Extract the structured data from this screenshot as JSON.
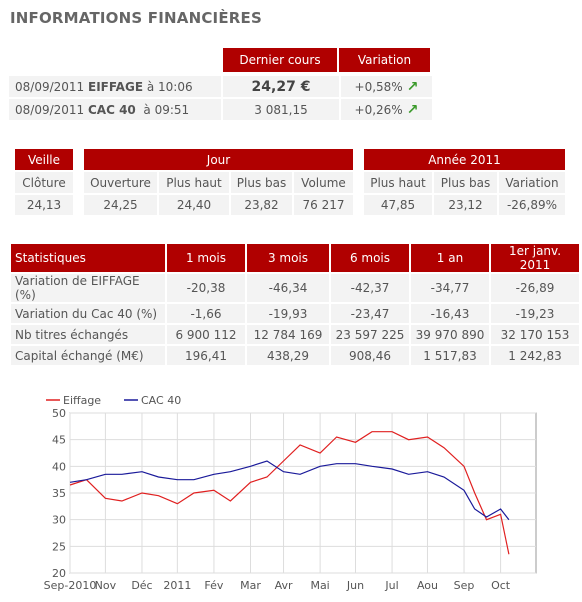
{
  "page_title": "INFORMATIONS FINANCIÈRES",
  "quote": {
    "col_last": "Dernier cours",
    "col_var": "Variation",
    "rows": [
      {
        "date": "08/09/2011",
        "name": "EIFFAGE",
        "time": "à 10:06",
        "price": "24,27 €",
        "variation": "+0,58%"
      },
      {
        "date": "08/09/2011",
        "name": "CAC 40",
        "time": "à 09:51",
        "price": "3 081,15",
        "variation": "+0,26%"
      }
    ]
  },
  "day": {
    "veille": {
      "header": "Veille",
      "cols": [
        "Clôture"
      ],
      "vals": [
        "24,13"
      ]
    },
    "jour": {
      "header": "Jour",
      "cols": [
        "Ouverture",
        "Plus haut",
        "Plus bas",
        "Volume"
      ],
      "vals": [
        "24,25",
        "24,40",
        "23,82",
        "76 217"
      ]
    },
    "annee": {
      "header": "Année 2011",
      "cols": [
        "Plus haut",
        "Plus bas",
        "Variation"
      ],
      "vals": [
        "47,85",
        "23,12",
        "-26,89%"
      ]
    }
  },
  "stats": {
    "headers": [
      "Statistiques",
      "1 mois",
      "3 mois",
      "6 mois",
      "1 an",
      "1er janv. 2011"
    ],
    "rows": [
      [
        "Variation de EIFFAGE (%)",
        "-20,38",
        "-46,34",
        "-42,37",
        "-34,77",
        "-26,89"
      ],
      [
        "Variation du Cac 40 (%)",
        "-1,66",
        "-19,93",
        "-23,47",
        "-16,43",
        "-19,23"
      ],
      [
        "Nb titres échangés",
        "6 900 112",
        "12 784 169",
        "23 597 225",
        "39 970 890",
        "32 170 153"
      ],
      [
        "Capital échangé (M€)",
        "196,41",
        "438,29",
        "908,46",
        "1 517,83",
        "1 242,83"
      ]
    ]
  },
  "colors": {
    "accent": "#b00000",
    "eiffage": "#e02020",
    "cac": "#1a1a9a",
    "up_arrow": "#3a9a2a"
  },
  "chart_data": {
    "type": "line",
    "legend": [
      "Eiffage",
      "CAC 40"
    ],
    "x_ticks": [
      "Sep-2010",
      "Nov",
      "Déc",
      "2011",
      "Fév",
      "Mar",
      "Avr",
      "Mai",
      "Jun",
      "Jul",
      "Aou",
      "Sep",
      "Oct"
    ],
    "ylim": [
      20,
      50
    ],
    "y_ticks": [
      20,
      25,
      30,
      35,
      40,
      45,
      50
    ],
    "grid": true,
    "legend_position": "top-left",
    "series": [
      {
        "name": "Eiffage",
        "x": [
          "2010-09-01",
          "2010-09-15",
          "2010-10-01",
          "2010-10-15",
          "2010-11-01",
          "2010-11-15",
          "2010-12-01",
          "2010-12-15",
          "2011-01-01",
          "2011-01-15",
          "2011-02-01",
          "2011-02-15",
          "2011-03-01",
          "2011-03-15",
          "2011-04-01",
          "2011-04-15",
          "2011-05-01",
          "2011-05-15",
          "2011-06-01",
          "2011-06-15",
          "2011-07-01",
          "2011-07-15",
          "2011-08-01",
          "2011-08-10",
          "2011-08-20",
          "2011-09-01",
          "2011-09-08"
        ],
        "values": [
          36.5,
          37.5,
          34.0,
          33.5,
          35.0,
          34.5,
          33.0,
          35.0,
          35.5,
          33.5,
          37.0,
          38.0,
          41.0,
          44.0,
          42.5,
          45.5,
          44.5,
          46.5,
          46.5,
          45.0,
          45.5,
          43.5,
          40.0,
          35.0,
          30.0,
          31.0,
          23.5
        ]
      },
      {
        "name": "CAC 40",
        "x": [
          "2010-09-01",
          "2010-09-15",
          "2010-10-01",
          "2010-10-15",
          "2010-11-01",
          "2010-11-15",
          "2010-12-01",
          "2010-12-15",
          "2011-01-01",
          "2011-01-15",
          "2011-02-01",
          "2011-02-15",
          "2011-03-01",
          "2011-03-15",
          "2011-04-01",
          "2011-04-15",
          "2011-05-01",
          "2011-05-15",
          "2011-06-01",
          "2011-06-15",
          "2011-07-01",
          "2011-07-15",
          "2011-08-01",
          "2011-08-10",
          "2011-08-20",
          "2011-09-01",
          "2011-09-08"
        ],
        "values": [
          37.0,
          37.5,
          38.5,
          38.5,
          39.0,
          38.0,
          37.5,
          37.5,
          38.5,
          39.0,
          40.0,
          41.0,
          39.0,
          38.5,
          40.0,
          40.5,
          40.5,
          40.0,
          39.5,
          38.5,
          39.0,
          38.0,
          35.5,
          32.0,
          30.5,
          32.0,
          30.0
        ]
      }
    ]
  }
}
